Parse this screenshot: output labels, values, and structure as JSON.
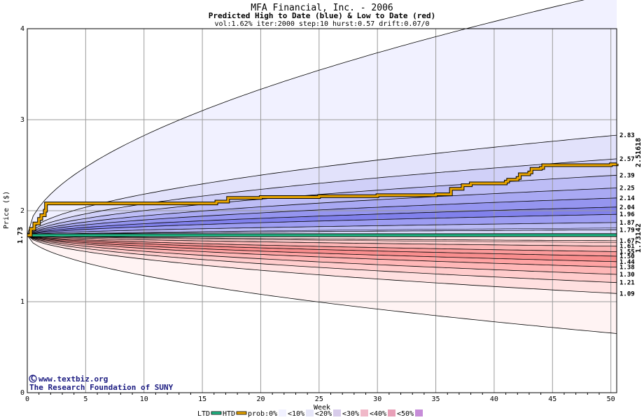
{
  "chart_data": {
    "type": "area",
    "title": "MFA Financial, Inc. - 2006",
    "subtitle": "Predicted High to Date (blue) &  Low to Date (red)",
    "params": "vol:1.62% iter:2000 step:10 hurst:0.57 drift:0.07/0",
    "xlabel": "Week",
    "ylabel": "Price ($)",
    "xlim": [
      0,
      50.5
    ],
    "ylim": [
      0,
      4
    ],
    "x_ticks": [
      "0",
      "5",
      "10",
      "15",
      "20",
      "25",
      "30",
      "35",
      "40",
      "45",
      "50"
    ],
    "y_ticks": [
      "0",
      "1",
      "2",
      "3",
      "4"
    ],
    "start_price": "1.73",
    "start_value": 1.73,
    "high_bands": [
      {
        "end": 4.4,
        "color": "#f1f1ff"
      },
      {
        "end": 2.83,
        "color": "#e2e2fb"
      },
      {
        "end": 2.57,
        "color": "#d0d0f8"
      },
      {
        "end": 2.39,
        "color": "#bdbdf6"
      },
      {
        "end": 2.25,
        "color": "#a9a9f3"
      },
      {
        "end": 2.14,
        "color": "#9595f0"
      },
      {
        "end": 2.04,
        "color": "#8181ec"
      },
      {
        "end": 1.96,
        "color": "#9d9df2"
      },
      {
        "end": 1.87,
        "color": "#babaf6"
      },
      {
        "end": 1.79,
        "color": "#d9d9fa"
      }
    ],
    "low_bands": [
      {
        "end": 0.65,
        "color": "#fff3f3"
      },
      {
        "end": 1.09,
        "color": "#ffe0e0"
      },
      {
        "end": 1.21,
        "color": "#ffcccc"
      },
      {
        "end": 1.3,
        "color": "#ffb7b7"
      },
      {
        "end": 1.38,
        "color": "#ffa3a3"
      },
      {
        "end": 1.44,
        "color": "#f98e8e"
      },
      {
        "end": 1.5,
        "color": "#fb9b9b"
      },
      {
        "end": 1.55,
        "color": "#fcb4b4"
      },
      {
        "end": 1.61,
        "color": "#fdcccc"
      },
      {
        "end": 1.67,
        "color": "#fee4e4"
      }
    ],
    "right_labels": [
      "2.83",
      "2.57",
      "2.39",
      "2.25",
      "2.14",
      "2.04",
      "1.96",
      "1.87",
      "1.79",
      "1.67",
      "1.61",
      "1.55",
      "1.50",
      "1.44",
      "1.38",
      "1.30",
      "1.21",
      "1.09"
    ],
    "right_values": [
      2.83,
      2.57,
      2.39,
      2.25,
      2.14,
      2.04,
      1.96,
      1.87,
      1.79,
      1.67,
      1.61,
      1.55,
      1.5,
      1.44,
      1.38,
      1.3,
      1.21,
      1.09
    ],
    "htd": {
      "label": "2.51618",
      "color": "#e8a400",
      "x": [
        0,
        0.3,
        0.6,
        1,
        1.2,
        1.5,
        1.6,
        2,
        5,
        10,
        15,
        16,
        16.2,
        17,
        17.2,
        20,
        25,
        30,
        35,
        36,
        36.3,
        37,
        37.3,
        38,
        41,
        41.2,
        42,
        42.2,
        43,
        43.2,
        44,
        44.2,
        50,
        50.5
      ],
      "y": [
        1.73,
        1.8,
        1.86,
        1.91,
        1.95,
        2.0,
        2.08,
        2.08,
        2.08,
        2.08,
        2.08,
        2.08,
        2.1,
        2.1,
        2.14,
        2.15,
        2.16,
        2.17,
        2.18,
        2.18,
        2.24,
        2.24,
        2.28,
        2.3,
        2.32,
        2.34,
        2.36,
        2.4,
        2.42,
        2.46,
        2.47,
        2.5,
        2.51,
        2.516
      ]
    },
    "ltd": {
      "label": "1.73142",
      "color": "#22bb88",
      "x": [
        0,
        50.5
      ],
      "y": [
        1.73,
        1.7314
      ]
    },
    "legend": [
      "LTD",
      "HTD",
      "prob:0%",
      "<10%",
      "<20%",
      "<30%",
      "<40%",
      "<50%"
    ],
    "legend_colors": [
      "#f1f1ff",
      "#e6e6f8",
      "#d7cbea",
      "#f0b8c8",
      "#e8a0b8",
      "#c68cd8"
    ]
  },
  "watermark": {
    "line1": "www.textbiz.org",
    "line2": "The Research Foundation of SUNY",
    "copyright_symbol": "C"
  }
}
